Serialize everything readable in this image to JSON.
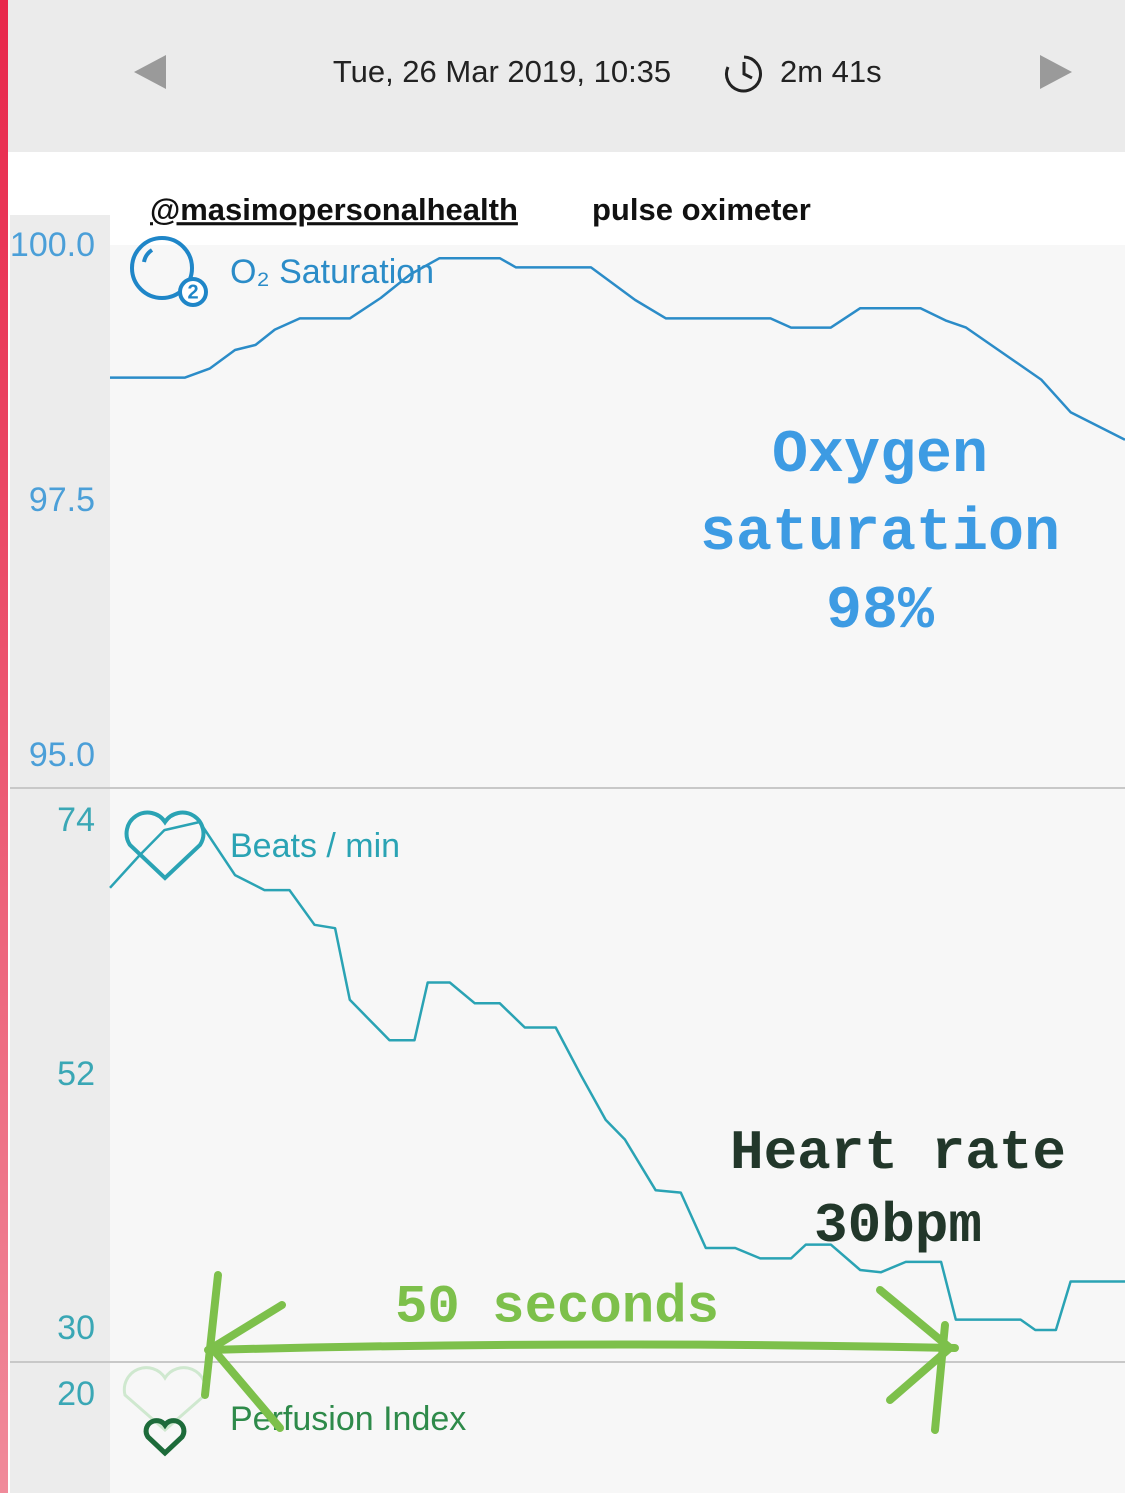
{
  "header": {
    "date": "Tue, 26 Mar 2019, 10:35",
    "duration": "2m 41s"
  },
  "caption": {
    "handle": "@masimopersonalhealth",
    "text": "pulse oximeter"
  },
  "chart_data": [
    {
      "type": "line",
      "title": "O₂ Saturation",
      "color": "#2b8cc8",
      "xlim": [
        0,
        69
      ],
      "ylim": [
        95,
        100
      ],
      "yticks": [
        {
          "value": 95,
          "label": "95.0"
        },
        97.5,
        {
          "value": 100,
          "label": "100.0"
        }
      ],
      "x": [
        0,
        5.1,
        6.8,
        8.5,
        9.9,
        11.2,
        12.9,
        16.3,
        18.4,
        20.4,
        22.4,
        26.5,
        27.6,
        32.7,
        35.7,
        37.8,
        44.9,
        46.3,
        49.0,
        51.0,
        55.1,
        56.8,
        58.2,
        63.3,
        65.3,
        69.0
      ],
      "values": [
        98.72,
        98.72,
        98.81,
        98.99,
        99.04,
        99.19,
        99.3,
        99.3,
        99.5,
        99.73,
        99.89,
        99.89,
        99.8,
        99.8,
        99.48,
        99.3,
        99.3,
        99.21,
        99.21,
        99.4,
        99.4,
        99.28,
        99.21,
        98.7,
        98.38,
        98.11
      ],
      "annotation": [
        "Oxygen",
        "saturation",
        "98%"
      ]
    },
    {
      "type": "line",
      "title": "Beats / min",
      "color": "#2aa3b4",
      "xlim": [
        0,
        69
      ],
      "ylim": [
        30,
        74
      ],
      "yticks": [
        30,
        52,
        74
      ],
      "x": [
        0,
        2.0,
        3.7,
        6.1,
        8.5,
        10.5,
        12.2,
        13.9,
        15.3,
        16.3,
        17.3,
        19.0,
        20.7,
        21.6,
        23.1,
        24.8,
        26.5,
        28.2,
        30.3,
        32.0,
        33.7,
        35.0,
        37.1,
        38.8,
        40.5,
        42.5,
        44.2,
        46.3,
        47.3,
        49.0,
        51.0,
        52.4,
        54.1,
        56.5,
        57.5,
        61.9,
        62.9,
        64.3,
        65.3,
        69.0
      ],
      "values": [
        68.3,
        71.1,
        73.3,
        74,
        69.4,
        68.1,
        68.1,
        65.1,
        64.8,
        58.6,
        57.3,
        55.1,
        55.1,
        60.1,
        60.1,
        58.3,
        58.3,
        56.2,
        56.2,
        52.1,
        48.2,
        46.5,
        42.1,
        41.9,
        37.1,
        37.1,
        36.2,
        36.2,
        37.4,
        37.4,
        35.2,
        35.0,
        35.9,
        35.9,
        30.9,
        30.9,
        30.0,
        30.0,
        34.2,
        34.2
      ],
      "annotation": [
        "Heart rate",
        "30bpm"
      ]
    }
  ],
  "span_annotation": "50 seconds",
  "perfusion": {
    "title": "Perfusion Index",
    "tick_label": "20"
  }
}
